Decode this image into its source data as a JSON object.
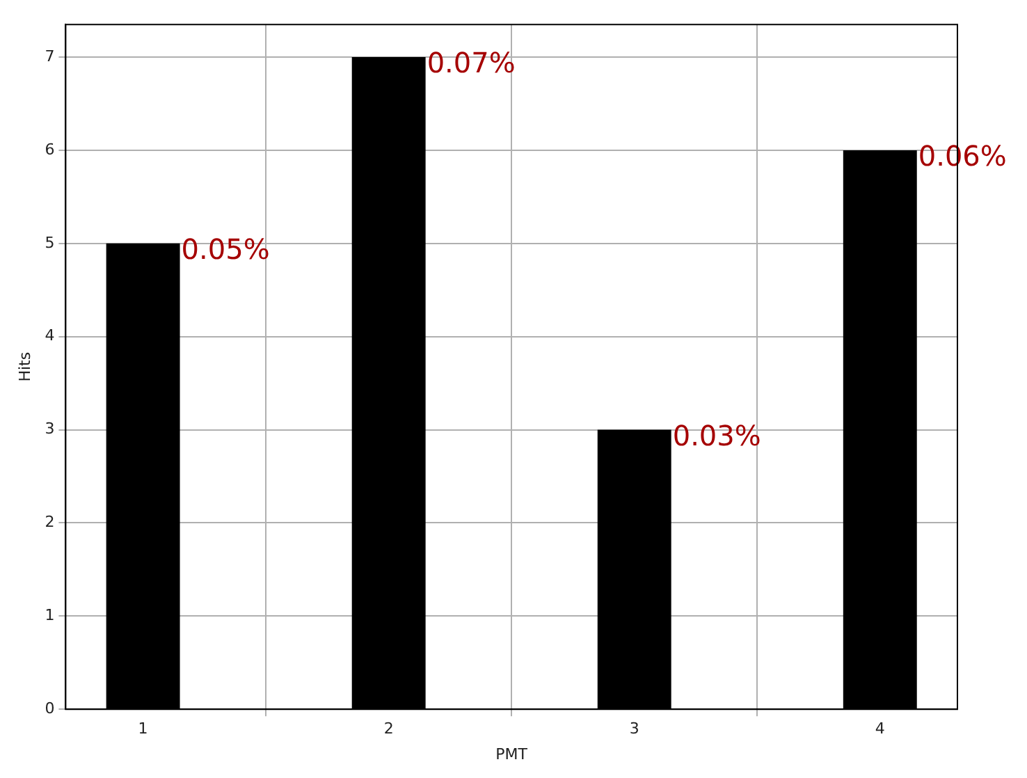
{
  "chart_data": {
    "type": "bar",
    "x": [
      1,
      2,
      3,
      4
    ],
    "values": [
      5,
      7,
      3,
      6
    ],
    "color": "#000000",
    "annotations": [
      {
        "text": "0.05%",
        "x": 1,
        "y": 5
      },
      {
        "text": "0.07%",
        "x": 2,
        "y": 7
      },
      {
        "text": "0.03%",
        "x": 3,
        "y": 3
      },
      {
        "text": "0.06%",
        "x": 4,
        "y": 6
      }
    ],
    "xlim": [
      0.685,
      4.315
    ],
    "xticks": [
      1,
      2,
      3,
      4
    ],
    "ylim": [
      0,
      7.35
    ],
    "yticks": [
      0,
      1,
      2,
      3,
      4,
      5,
      6,
      7
    ],
    "xlabel": "PMT",
    "ylabel": "Hits",
    "grid": true,
    "legend": false
  }
}
